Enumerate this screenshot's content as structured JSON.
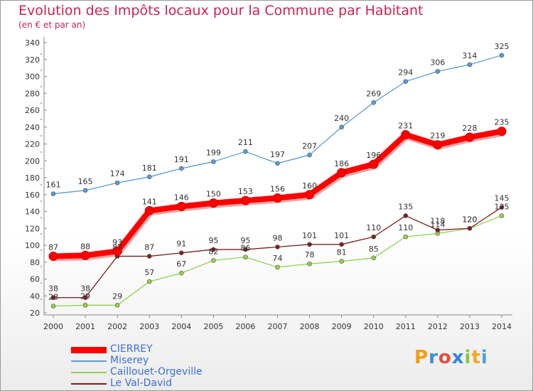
{
  "title": "Evolution des Impôts locaux pour la Commune par Habitant",
  "subtitle": "(en € et par an)",
  "brand": {
    "name": "Proxiti",
    "letters": [
      "P",
      "r",
      "o",
      "x",
      "i",
      "t",
      "i"
    ],
    "letter_colors": [
      "#f39c12",
      "#3c8dd4",
      "#e74c3c",
      "#2e86de",
      "#8dc63f",
      "#f5a623",
      "#4aa3df"
    ]
  },
  "chart_data": {
    "type": "line",
    "title": "Evolution des Impôts locaux pour la Commune par Habitant",
    "ylabel": "(en € et par an)",
    "xlabel": "",
    "x": [
      "2000",
      "2001",
      "2002",
      "2003",
      "2004",
      "2005",
      "2006",
      "2007",
      "2008",
      "2009",
      "2010",
      "2011",
      "2012",
      "2013",
      "2014"
    ],
    "ylim": [
      20,
      340
    ],
    "yticks": [
      "20",
      "40",
      "60",
      "80",
      "100",
      "120",
      "140",
      "160",
      "180",
      "200",
      "220",
      "240",
      "260",
      "280",
      "300",
      "320",
      "340"
    ],
    "grid": false,
    "legend_position": "bottom-left",
    "series": [
      {
        "name": "CIERREY",
        "color": "#ff0000",
        "values": [
          87,
          88,
          93,
          141,
          146,
          150,
          153,
          156,
          160,
          186,
          196,
          231,
          219,
          228,
          235
        ]
      },
      {
        "name": "Miserey",
        "color": "#5b9bd5",
        "values": [
          161,
          165,
          174,
          181,
          191,
          199,
          211,
          197,
          207,
          240,
          269,
          294,
          306,
          314,
          325
        ]
      },
      {
        "name": "Caillouet-Orgeville",
        "color": "#92d050",
        "values": [
          28,
          29,
          29,
          57,
          67,
          82,
          86,
          74,
          78,
          81,
          85,
          110,
          114,
          120,
          135
        ]
      },
      {
        "name": "Le Val-David",
        "color": "#7b2020",
        "values": [
          38,
          38,
          87,
          87,
          91,
          95,
          95,
          98,
          101,
          101,
          110,
          135,
          118,
          120,
          145
        ]
      }
    ]
  }
}
